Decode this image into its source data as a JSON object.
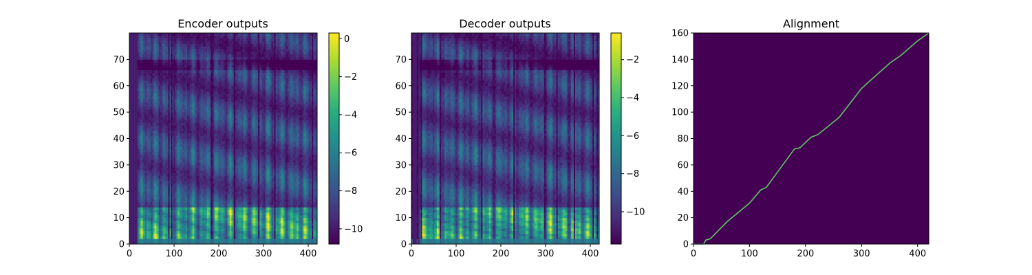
{
  "chart_data": [
    {
      "type": "heatmap",
      "title": "Encoder outputs",
      "xlim": [
        0,
        420
      ],
      "ylim": [
        0,
        80
      ],
      "xticks": [
        0,
        100,
        200,
        300,
        400
      ],
      "yticks": [
        0,
        10,
        20,
        30,
        40,
        50,
        60,
        70
      ],
      "colormap": "viridis",
      "colorbar": {
        "min": -10.8,
        "max": 0.3,
        "ticks": [
          0,
          -2,
          -4,
          -6,
          -8,
          -10
        ]
      },
      "grid": false
    },
    {
      "type": "heatmap",
      "title": "Decoder outputs",
      "xlim": [
        0,
        420
      ],
      "ylim": [
        0,
        80
      ],
      "xticks": [
        0,
        100,
        200,
        300,
        400
      ],
      "yticks": [
        0,
        10,
        20,
        30,
        40,
        50,
        60,
        70
      ],
      "colormap": "viridis",
      "colorbar": {
        "min": -11.7,
        "max": -0.6,
        "ticks": [
          -2,
          -4,
          -6,
          -8,
          -10
        ]
      },
      "grid": false
    },
    {
      "type": "heatmap",
      "title": "Alignment",
      "xlim": [
        0,
        420
      ],
      "ylim": [
        0,
        160
      ],
      "xticks": [
        0,
        100,
        200,
        300,
        400
      ],
      "yticks": [
        0,
        20,
        40,
        60,
        80,
        100,
        120,
        140,
        160
      ],
      "colormap": "viridis",
      "alignment_path": [
        [
          0,
          0
        ],
        [
          18,
          0
        ],
        [
          22,
          3
        ],
        [
          30,
          4
        ],
        [
          60,
          17
        ],
        [
          100,
          31
        ],
        [
          120,
          41
        ],
        [
          130,
          43
        ],
        [
          180,
          72
        ],
        [
          190,
          73
        ],
        [
          210,
          81
        ],
        [
          222,
          83
        ],
        [
          260,
          96
        ],
        [
          300,
          118
        ],
        [
          350,
          137
        ],
        [
          370,
          143
        ],
        [
          400,
          154
        ],
        [
          420,
          160
        ]
      ],
      "grid": false
    }
  ]
}
